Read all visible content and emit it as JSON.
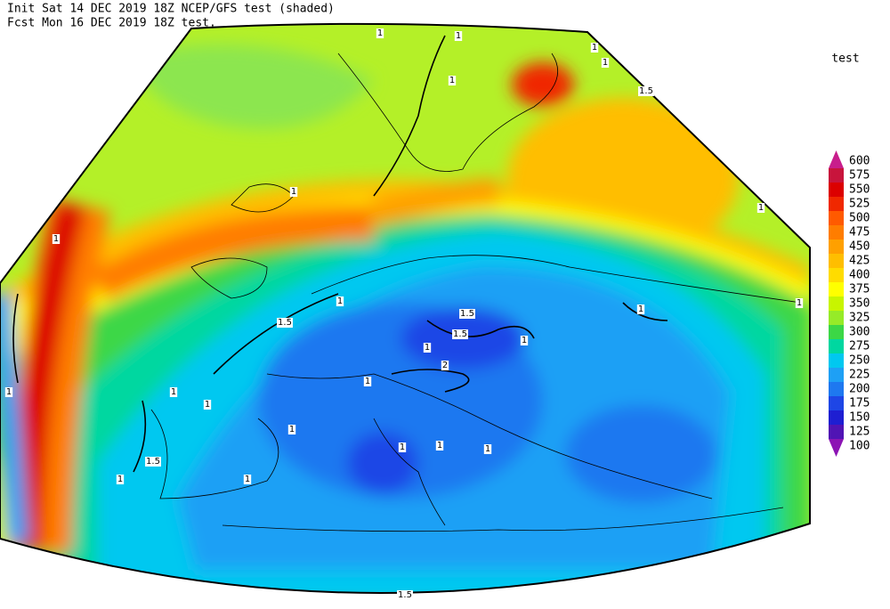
{
  "header": {
    "init": "Init  Sat 14 DEC 2019 18Z  NCEP/GFS test (shaded)",
    "fcst": "Fcst Mon 16 DEC 2019 18Z  test."
  },
  "legend": {
    "title": "test",
    "levels": [
      600,
      575,
      550,
      525,
      500,
      475,
      450,
      425,
      400,
      375,
      350,
      325,
      300,
      275,
      250,
      225,
      200,
      175,
      150,
      125,
      100
    ],
    "colors": [
      "#c81e8c",
      "#c8143c",
      "#dc0000",
      "#f02800",
      "#ff5a00",
      "#ff7d00",
      "#ffa000",
      "#ffbe00",
      "#ffdc00",
      "#ffff00",
      "#c8f500",
      "#96eb28",
      "#3cd746",
      "#00d7a0",
      "#00c8f0",
      "#1ea0f5",
      "#1e78f0",
      "#1e46e6",
      "#1e1ed2",
      "#5014b4",
      "#8c14b4"
    ]
  },
  "contour_labels": [
    "1",
    "1",
    "1",
    "1",
    "1",
    "1.5",
    "1",
    "1",
    "1",
    "1",
    "1",
    "1.5",
    "1",
    "1.5",
    "1.5",
    "1",
    "1",
    "2",
    "1",
    "1",
    "1",
    "1",
    "1",
    "1",
    "1",
    "1",
    "1.5",
    "1",
    "1",
    "1.5"
  ]
}
